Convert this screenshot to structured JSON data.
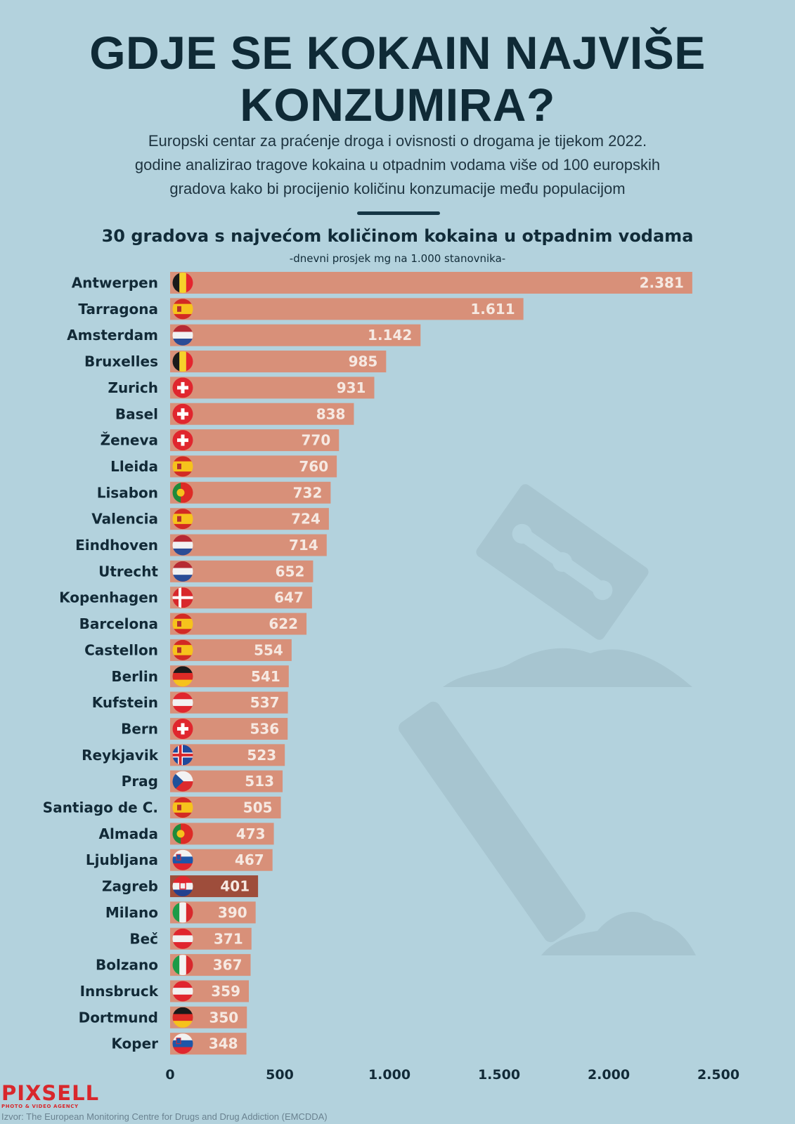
{
  "title_lines": [
    "GDJE SE KOKAIN NAJVIŠE",
    "KONZUMIRA?"
  ],
  "subtitle_lines": [
    "Europski centar za praćenje droga i ovisnosti o drogama je tijekom 2022.",
    "godine analizirao tragove kokaina u otpadnim vodama više od 100 europskih",
    "gradova kako bi procijenio količinu konzumacije među populacijom"
  ],
  "logo": {
    "text": "PIXSELL",
    "tagline": "PHOTO & VIDEO AGENCY"
  },
  "source": "Izvor: The European Monitoring Centre for Drugs and Drug Addiction (EMCDDA)",
  "colors": {
    "background": "#b3d2dd",
    "bar": "#d89079",
    "bar_highlight": "#9e4d3b",
    "silhouette": "#a7c5d0",
    "title": "#0f2a36"
  },
  "decorations": [
    "razor-blade-icon",
    "straw-icon",
    "powder-pile-icon"
  ],
  "chart_data": {
    "type": "bar",
    "orientation": "horizontal",
    "title": "30 gradova s najvećom količinom kokaina u otpadnim vodama",
    "subtitle": "-dnevni prosjek mg na 1.000 stanovnika-",
    "xlim": [
      0,
      2500
    ],
    "xticks": [
      0,
      500,
      1000,
      1500,
      2000,
      2500
    ],
    "xtick_labels": [
      "0",
      "500",
      "1.000",
      "1.500",
      "2.000",
      "2.500"
    ],
    "grid": false,
    "highlight": "Zagreb",
    "categories": [
      "Antwerpen",
      "Tarragona",
      "Amsterdam",
      "Bruxelles",
      "Zurich",
      "Basel",
      "Ženeva",
      "Lleida",
      "Lisabon",
      "Valencia",
      "Eindhoven",
      "Utrecht",
      "Kopenhagen",
      "Barcelona",
      "Castellon",
      "Berlin",
      "Kufstein",
      "Bern",
      "Reykjavik",
      "Prag",
      "Santiago de C.",
      "Almada",
      "Ljubljana",
      "Zagreb",
      "Milano",
      "Beč",
      "Bolzano",
      "Innsbruck",
      "Dortmund",
      "Koper"
    ],
    "values": [
      2381,
      1611,
      1142,
      985,
      931,
      838,
      770,
      760,
      732,
      724,
      714,
      652,
      647,
      622,
      554,
      541,
      537,
      536,
      523,
      513,
      505,
      473,
      467,
      401,
      390,
      371,
      367,
      359,
      350,
      348
    ],
    "value_labels": [
      "2.381",
      "1.611",
      "1.142",
      "985",
      "931",
      "838",
      "770",
      "760",
      "732",
      "724",
      "714",
      "652",
      "647",
      "622",
      "554",
      "541",
      "537",
      "536",
      "523",
      "513",
      "505",
      "473",
      "467",
      "401",
      "390",
      "371",
      "367",
      "359",
      "350",
      "348"
    ],
    "flags": [
      "be",
      "es",
      "nl",
      "be",
      "ch",
      "ch",
      "ch",
      "es",
      "pt",
      "es",
      "nl",
      "nl",
      "dk",
      "es",
      "es",
      "de",
      "at",
      "ch",
      "is",
      "cz",
      "es",
      "pt",
      "si",
      "hr",
      "it",
      "at",
      "it",
      "at",
      "de",
      "si"
    ]
  }
}
